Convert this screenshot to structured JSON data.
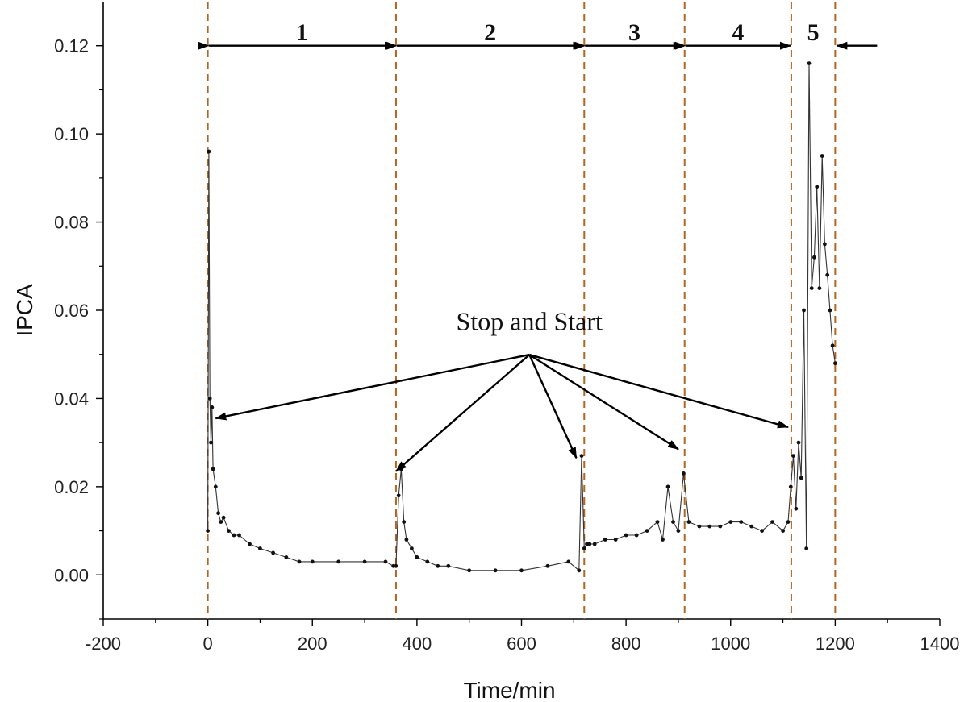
{
  "chart_data": {
    "type": "line",
    "title": "",
    "xlabel": "Time/min",
    "ylabel": "IPCA",
    "xlim": [
      -200,
      1400
    ],
    "ylim": [
      -0.01,
      0.13
    ],
    "xticks": [
      -200,
      0,
      200,
      400,
      600,
      800,
      1000,
      1200,
      1400
    ],
    "xtick_labels": [
      "-200",
      "0",
      "200",
      "400",
      "600",
      "800",
      "1000",
      "1200",
      "1400"
    ],
    "yticks": [
      0.0,
      0.02,
      0.04,
      0.06,
      0.08,
      0.1,
      0.12
    ],
    "ytick_labels": [
      "0.00",
      "0.02",
      "0.04",
      "0.06",
      "0.08",
      "0.10",
      "0.12"
    ],
    "grid": false,
    "series": [
      {
        "name": "IPCA",
        "color": "#111111",
        "x": [
          0,
          2,
          4,
          6,
          8,
          10,
          15,
          20,
          25,
          30,
          40,
          50,
          60,
          80,
          100,
          125,
          150,
          175,
          200,
          250,
          300,
          340,
          355,
          360,
          365,
          370,
          375,
          380,
          390,
          400,
          420,
          440,
          460,
          500,
          550,
          600,
          650,
          690,
          710,
          715,
          720,
          725,
          730,
          740,
          760,
          780,
          800,
          820,
          840,
          860,
          870,
          880,
          890,
          900,
          910,
          920,
          940,
          960,
          980,
          1000,
          1020,
          1040,
          1060,
          1080,
          1100,
          1110,
          1115,
          1120,
          1125,
          1130,
          1135,
          1140,
          1145,
          1150,
          1155,
          1160,
          1165,
          1170,
          1175,
          1180,
          1185,
          1190,
          1195,
          1200
        ],
        "y": [
          0.01,
          0.096,
          0.04,
          0.03,
          0.038,
          0.024,
          0.02,
          0.014,
          0.012,
          0.013,
          0.01,
          0.009,
          0.009,
          0.007,
          0.006,
          0.005,
          0.004,
          0.003,
          0.003,
          0.003,
          0.003,
          0.003,
          0.002,
          0.002,
          0.018,
          0.024,
          0.012,
          0.008,
          0.006,
          0.004,
          0.003,
          0.002,
          0.002,
          0.001,
          0.001,
          0.001,
          0.002,
          0.003,
          0.001,
          0.027,
          0.006,
          0.007,
          0.007,
          0.007,
          0.008,
          0.008,
          0.009,
          0.009,
          0.01,
          0.012,
          0.008,
          0.02,
          0.012,
          0.01,
          0.023,
          0.012,
          0.011,
          0.011,
          0.011,
          0.012,
          0.012,
          0.011,
          0.01,
          0.012,
          0.01,
          0.012,
          0.02,
          0.027,
          0.015,
          0.03,
          0.022,
          0.06,
          0.006,
          0.116,
          0.065,
          0.072,
          0.088,
          0.065,
          0.095,
          0.075,
          0.068,
          0.06,
          0.052,
          0.048
        ]
      }
    ],
    "vlines": {
      "color": "#b5651d",
      "style": "dashed",
      "x": [
        0,
        360,
        720,
        912,
        1116,
        1200
      ]
    },
    "phases": [
      {
        "label": "1",
        "x_start": 0,
        "x_end": 360
      },
      {
        "label": "2",
        "x_start": 360,
        "x_end": 720
      },
      {
        "label": "3",
        "x_start": 720,
        "x_end": 912
      },
      {
        "label": "4",
        "x_start": 912,
        "x_end": 1116
      },
      {
        "label": "5",
        "x_start": 1116,
        "x_end": 1200
      }
    ],
    "annotations": [
      {
        "text": "Stop and Start",
        "x": 615,
        "y": 0.0555,
        "arrow_origin": [
          615,
          0.0545
        ],
        "arrow_targets": [
          [
            15,
            0.0355
          ],
          [
            360,
            0.0235
          ],
          [
            705,
            0.0265
          ],
          [
            900,
            0.0285
          ],
          [
            1110,
            0.0335
          ]
        ]
      }
    ]
  }
}
